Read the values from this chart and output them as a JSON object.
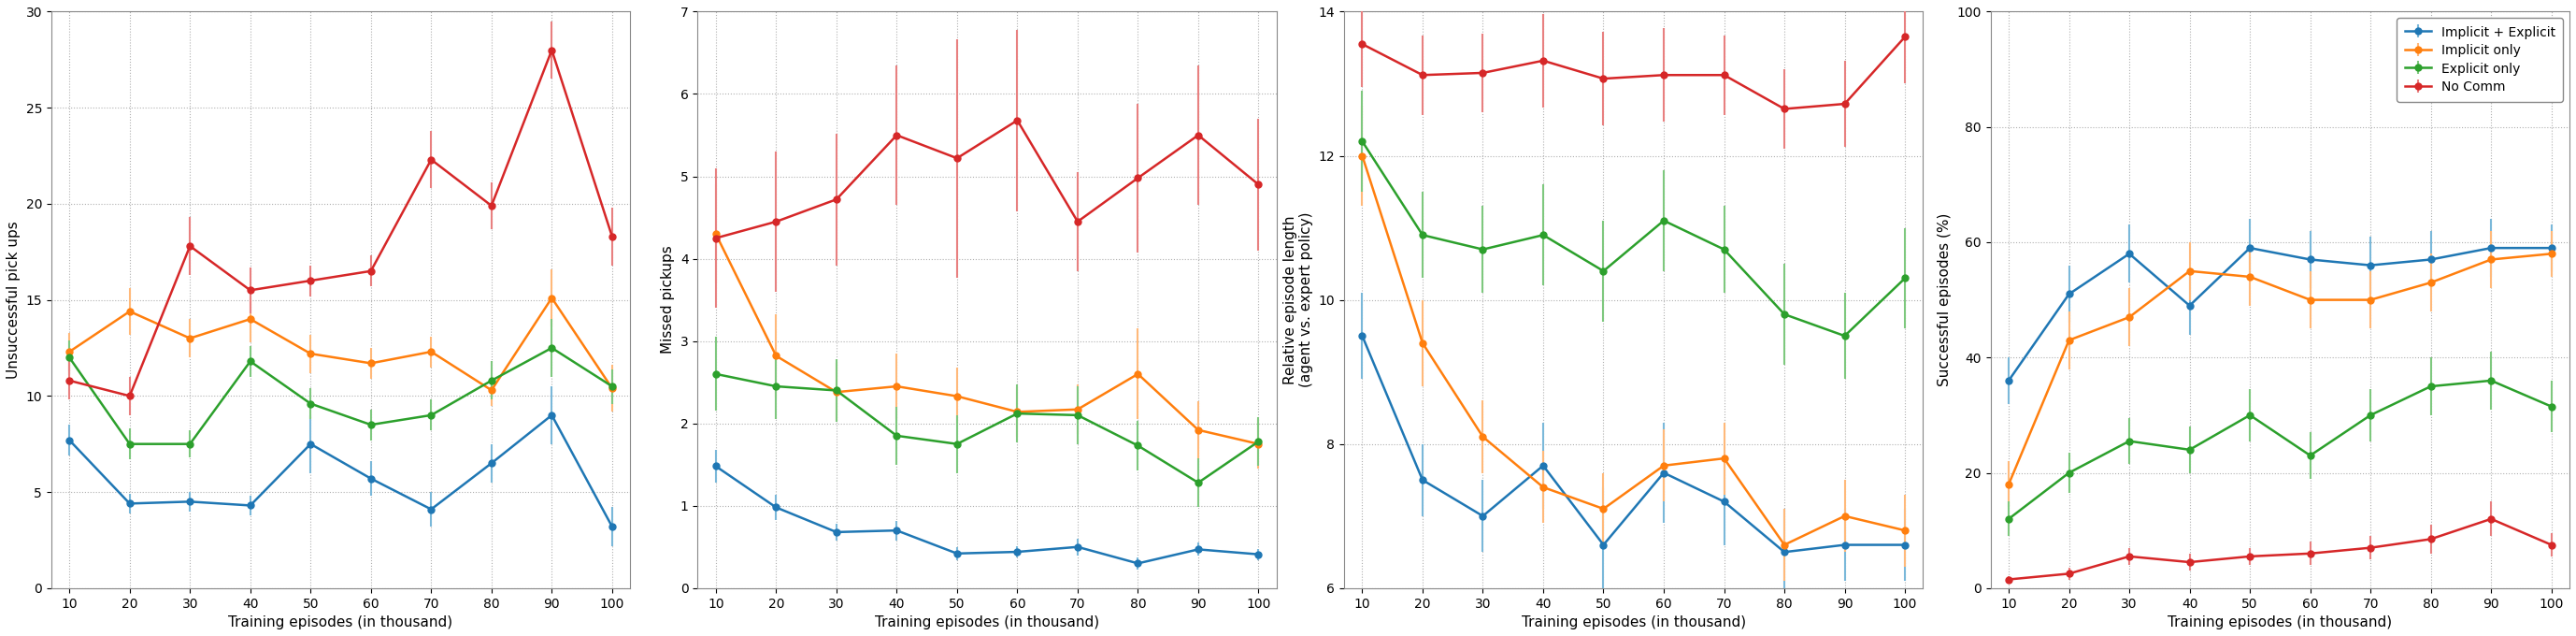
{
  "x": [
    10,
    20,
    30,
    40,
    50,
    60,
    70,
    80,
    90,
    100
  ],
  "plot1": {
    "ylabel": "Unsuccessful pick ups",
    "ylim": [
      0,
      30
    ],
    "yticks": [
      0,
      5,
      10,
      15,
      20,
      25,
      30
    ],
    "blue": {
      "y": [
        7.7,
        4.4,
        4.5,
        4.3,
        7.5,
        5.7,
        4.1,
        6.5,
        9.0,
        3.2
      ],
      "yerr": [
        0.8,
        0.5,
        0.5,
        0.5,
        1.5,
        0.9,
        0.9,
        1.0,
        1.5,
        1.0
      ]
    },
    "orange": {
      "y": [
        12.3,
        14.4,
        13.0,
        14.0,
        12.2,
        11.7,
        12.3,
        10.3,
        15.1,
        10.4
      ],
      "yerr": [
        1.0,
        1.2,
        1.0,
        1.2,
        1.0,
        0.8,
        0.8,
        0.8,
        1.5,
        1.2
      ]
    },
    "green": {
      "y": [
        12.0,
        7.5,
        7.5,
        11.8,
        9.6,
        8.5,
        9.0,
        10.8,
        12.5,
        10.5
      ],
      "yerr": [
        0.9,
        0.8,
        0.7,
        0.8,
        0.8,
        0.8,
        0.8,
        1.0,
        1.5,
        0.9
      ]
    },
    "red": {
      "y": [
        10.8,
        10.0,
        17.8,
        15.5,
        16.0,
        16.5,
        22.3,
        19.9,
        28.0,
        18.3
      ],
      "yerr": [
        1.0,
        1.0,
        1.5,
        1.2,
        0.8,
        0.8,
        1.5,
        1.2,
        1.5,
        1.5
      ]
    }
  },
  "plot2": {
    "ylabel": "Missed pickups",
    "ylim": [
      0,
      7
    ],
    "yticks": [
      0,
      1,
      2,
      3,
      4,
      5,
      6,
      7
    ],
    "blue": {
      "y": [
        1.48,
        0.98,
        0.68,
        0.7,
        0.42,
        0.44,
        0.5,
        0.3,
        0.47,
        0.41
      ],
      "yerr": [
        0.2,
        0.15,
        0.1,
        0.12,
        0.08,
        0.07,
        0.1,
        0.07,
        0.08,
        0.07
      ]
    },
    "orange": {
      "y": [
        4.3,
        2.82,
        2.38,
        2.45,
        2.33,
        2.14,
        2.17,
        2.6,
        1.92,
        1.75
      ],
      "yerr": [
        0.6,
        0.5,
        0.35,
        0.4,
        0.35,
        0.3,
        0.3,
        0.55,
        0.35,
        0.3
      ]
    },
    "green": {
      "y": [
        2.6,
        2.45,
        2.4,
        1.85,
        1.75,
        2.12,
        2.1,
        1.73,
        1.28,
        1.78
      ],
      "yerr": [
        0.45,
        0.4,
        0.38,
        0.35,
        0.35,
        0.35,
        0.35,
        0.3,
        0.3,
        0.3
      ]
    },
    "red": {
      "y": [
        4.25,
        4.45,
        4.72,
        5.5,
        5.22,
        5.68,
        4.45,
        4.98,
        5.5,
        4.9
      ],
      "yerr": [
        0.85,
        0.85,
        0.8,
        0.85,
        1.45,
        1.1,
        0.6,
        0.9,
        0.85,
        0.8
      ]
    }
  },
  "plot3": {
    "ylabel": "Relative episode length\n(agent vs. expert policy)",
    "ylim": [
      6,
      14
    ],
    "yticks": [
      6,
      8,
      10,
      12,
      14
    ],
    "blue": {
      "y": [
        9.5,
        7.5,
        7.0,
        7.7,
        6.6,
        7.6,
        7.2,
        6.5,
        6.6,
        6.6
      ],
      "yerr": [
        0.6,
        0.5,
        0.5,
        0.6,
        0.8,
        0.7,
        0.6,
        0.6,
        0.5,
        0.5
      ]
    },
    "orange": {
      "y": [
        12.0,
        9.4,
        8.1,
        7.4,
        7.1,
        7.7,
        7.8,
        6.6,
        7.0,
        6.8
      ],
      "yerr": [
        0.7,
        0.6,
        0.5,
        0.5,
        0.5,
        0.5,
        0.5,
        0.5,
        0.5,
        0.5
      ]
    },
    "green": {
      "y": [
        12.2,
        10.9,
        10.7,
        10.9,
        10.4,
        11.1,
        10.7,
        9.8,
        9.5,
        10.3
      ],
      "yerr": [
        0.7,
        0.6,
        0.6,
        0.7,
        0.7,
        0.7,
        0.6,
        0.7,
        0.6,
        0.7
      ]
    },
    "red": {
      "y": [
        13.55,
        13.12,
        13.15,
        13.32,
        13.07,
        13.12,
        13.12,
        12.65,
        12.72,
        13.65
      ],
      "yerr": [
        0.6,
        0.55,
        0.55,
        0.65,
        0.65,
        0.65,
        0.55,
        0.55,
        0.6,
        0.65
      ]
    }
  },
  "plot4": {
    "ylabel": "Successful episodes (%)",
    "ylim": [
      0,
      100
    ],
    "yticks": [
      0,
      20,
      40,
      60,
      80,
      100
    ],
    "blue": {
      "y": [
        36.0,
        51.0,
        58.0,
        49.0,
        59.0,
        57.0,
        56.0,
        57.0,
        59.0,
        59.0
      ],
      "yerr": [
        4.0,
        5.0,
        5.0,
        5.0,
        5.0,
        5.0,
        5.0,
        5.0,
        5.0,
        4.0
      ]
    },
    "orange": {
      "y": [
        18.0,
        43.0,
        47.0,
        55.0,
        54.0,
        50.0,
        50.0,
        53.0,
        57.0,
        58.0
      ],
      "yerr": [
        4.0,
        5.0,
        5.0,
        5.0,
        5.0,
        5.0,
        5.0,
        5.0,
        5.0,
        4.0
      ]
    },
    "green": {
      "y": [
        12.0,
        20.0,
        25.5,
        24.0,
        30.0,
        23.0,
        30.0,
        35.0,
        36.0,
        31.5
      ],
      "yerr": [
        3.0,
        3.5,
        4.0,
        4.0,
        4.5,
        4.0,
        4.5,
        5.0,
        5.0,
        4.5
      ]
    },
    "red": {
      "y": [
        1.5,
        2.5,
        5.5,
        4.5,
        5.5,
        6.0,
        7.0,
        8.5,
        12.0,
        7.5
      ],
      "yerr": [
        0.5,
        1.0,
        1.5,
        1.5,
        1.5,
        2.0,
        2.0,
        2.5,
        3.0,
        2.0
      ]
    }
  },
  "colors": {
    "blue": "#1f77b4",
    "orange": "#ff7f0e",
    "green": "#2ca02c",
    "red": "#d62728"
  },
  "ecolors": {
    "blue": "#7ab8d9",
    "orange": "#ffb97a",
    "green": "#7ec87e",
    "red": "#e88080"
  },
  "legend_labels": {
    "blue": "Implicit + Explicit",
    "orange": "Implicit only",
    "green": "Explicit only",
    "red": "No Comm"
  },
  "xlabel": "Training episodes (in thousand)",
  "background_color": "#ffffff",
  "grid_color": "#b0b0b0"
}
